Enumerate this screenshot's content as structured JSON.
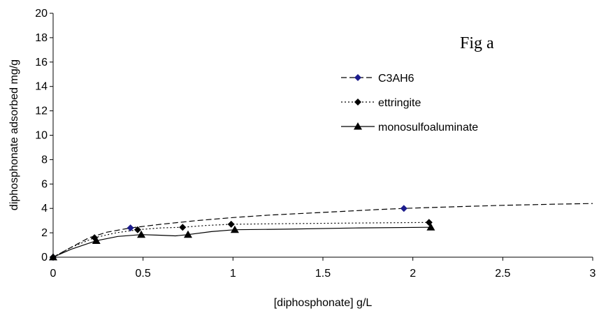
{
  "chart_data": {
    "type": "line",
    "annotation": "Fig a",
    "xlabel": "[diphosphonate] g/L",
    "ylabel": "diphosphonate adsorbed mg/g",
    "xlim": [
      0,
      3
    ],
    "ylim": [
      0,
      20
    ],
    "x_ticks": [
      "0",
      "0.5",
      "1",
      "1.5",
      "2",
      "2.5",
      "3"
    ],
    "y_ticks": [
      "0",
      "2",
      "4",
      "6",
      "8",
      "10",
      "12",
      "14",
      "16",
      "18",
      "20"
    ],
    "grid": false,
    "legend_position": "right",
    "series": [
      {
        "name": "C3AH6",
        "marker": "diamond",
        "marker_color": "#1c1c8c",
        "line_style": "dashed",
        "points": [
          [
            0,
            0
          ],
          [
            0.43,
            2.4
          ],
          [
            1.95,
            4.0
          ]
        ],
        "curve": [
          [
            0,
            0
          ],
          [
            0.1,
            0.8
          ],
          [
            0.2,
            1.6
          ],
          [
            0.3,
            2.05
          ],
          [
            0.43,
            2.4
          ],
          [
            0.6,
            2.7
          ],
          [
            0.8,
            3.0
          ],
          [
            1.0,
            3.25
          ],
          [
            1.2,
            3.45
          ],
          [
            1.4,
            3.6
          ],
          [
            1.6,
            3.75
          ],
          [
            1.8,
            3.9
          ],
          [
            1.95,
            4.0
          ],
          [
            2.2,
            4.12
          ],
          [
            2.5,
            4.25
          ],
          [
            2.8,
            4.35
          ],
          [
            3.0,
            4.4
          ]
        ]
      },
      {
        "name": "ettringite",
        "marker": "diamond",
        "marker_color": "#000000",
        "line_style": "dotted",
        "points": [
          [
            0,
            0
          ],
          [
            0.23,
            1.6
          ],
          [
            0.47,
            2.25
          ],
          [
            0.72,
            2.45
          ],
          [
            0.99,
            2.7
          ],
          [
            2.09,
            2.85
          ]
        ],
        "curve": [
          [
            0,
            0
          ],
          [
            0.1,
            0.8
          ],
          [
            0.23,
            1.6
          ],
          [
            0.35,
            2.0
          ],
          [
            0.47,
            2.25
          ],
          [
            0.6,
            2.4
          ],
          [
            0.72,
            2.45
          ],
          [
            0.85,
            2.6
          ],
          [
            0.99,
            2.7
          ],
          [
            1.3,
            2.75
          ],
          [
            1.7,
            2.8
          ],
          [
            2.09,
            2.85
          ]
        ]
      },
      {
        "name": "monosulfoaluminate",
        "marker": "triangle",
        "marker_color": "#000000",
        "line_style": "solid",
        "points": [
          [
            0,
            0
          ],
          [
            0.24,
            1.35
          ],
          [
            0.49,
            1.85
          ],
          [
            0.75,
            1.85
          ],
          [
            1.01,
            2.25
          ],
          [
            2.1,
            2.45
          ]
        ],
        "curve": [
          [
            0,
            0
          ],
          [
            0.1,
            0.65
          ],
          [
            0.24,
            1.35
          ],
          [
            0.36,
            1.7
          ],
          [
            0.49,
            1.85
          ],
          [
            0.6,
            1.8
          ],
          [
            0.68,
            1.75
          ],
          [
            0.75,
            1.85
          ],
          [
            0.88,
            2.1
          ],
          [
            1.01,
            2.25
          ],
          [
            1.3,
            2.3
          ],
          [
            1.7,
            2.4
          ],
          [
            2.1,
            2.45
          ]
        ]
      }
    ]
  }
}
